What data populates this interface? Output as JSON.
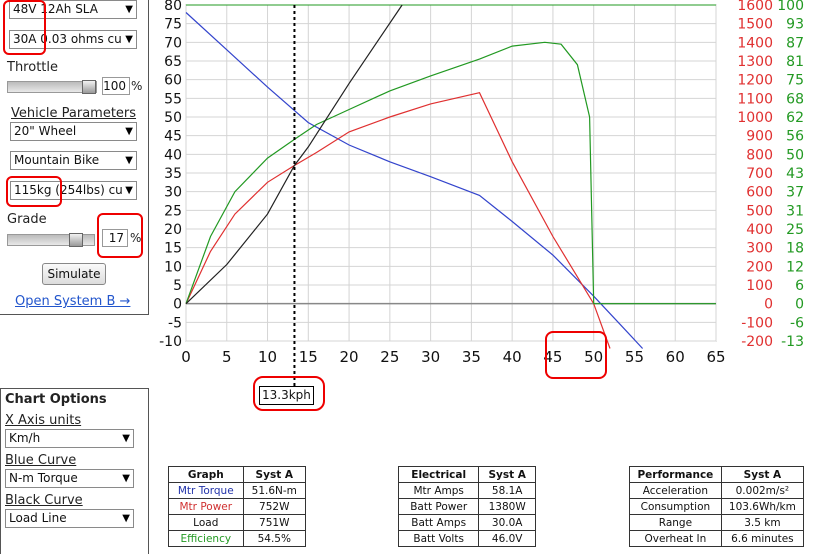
{
  "battery_select": "48V 12Ah SLA",
  "controller_select": "30A 0.03 ohms cu",
  "throttle": {
    "label": "Throttle",
    "value": "100",
    "unit": "%",
    "level": 1.0
  },
  "vehicle": {
    "heading": "Vehicle Parameters",
    "wheel": "20\"  Wheel",
    "bike": "Mountain Bike",
    "weight": "115kg (254lbs) cu"
  },
  "grade": {
    "label": "Grade",
    "value": "17",
    "unit": "%",
    "level": 0.85
  },
  "simulate_label": "Simulate",
  "open_system_b": "Open System B →",
  "chart_options": {
    "heading": "Chart Options",
    "x_axis_label": "X Axis units",
    "x_axis_value": "Km/h",
    "blue_label": "Blue Curve",
    "blue_value": "N-m Torque",
    "black_label": "Black Curve",
    "black_value": "Load Line"
  },
  "cursor_readout": "13.3kph",
  "colors": {
    "blue": "#3344cc",
    "red": "#e03030",
    "green": "#229922",
    "black": "#222222",
    "mark": "#ee0000"
  },
  "chart_data": {
    "type": "line",
    "xlim": [
      0,
      65
    ],
    "ylim": [
      -10,
      80
    ],
    "x_ticks": [
      "0",
      "5",
      "10",
      "15",
      "20",
      "25",
      "30",
      "35",
      "40",
      "45",
      "50",
      "55",
      "60",
      "65"
    ],
    "y_ticks_left": [
      "80",
      "75",
      "70",
      "65",
      "60",
      "55",
      "50",
      "45",
      "40",
      "35",
      "30",
      "25",
      "20",
      "15",
      "10",
      "5",
      "0",
      "-5",
      "-10"
    ],
    "y_ticks_right_red": [
      "1600",
      "1500",
      "1400",
      "1300",
      "1200",
      "1100",
      "1000",
      "900",
      "800",
      "700",
      "600",
      "500",
      "400",
      "300",
      "200",
      "100",
      "0",
      "-100",
      "-200"
    ],
    "y_ticks_right_green": [
      "100",
      "93",
      "87",
      "81",
      "75",
      "68",
      "62",
      "56",
      "50",
      "43",
      "37",
      "31",
      "25",
      "18",
      "12",
      "6",
      "0",
      "-6",
      "-13"
    ],
    "cursor_x": 13.3,
    "series": [
      {
        "color": "blue",
        "x": [
          0,
          5,
          10,
          15,
          20,
          25,
          30,
          36,
          40,
          45,
          50,
          53,
          56
        ],
        "y": [
          78,
          68,
          58,
          48.5,
          42.5,
          38,
          34,
          29,
          22,
          13,
          2,
          -5,
          -12
        ]
      },
      {
        "color": "red",
        "x": [
          0,
          3,
          6,
          10,
          13.3,
          16,
          20,
          25,
          30,
          36,
          40,
          45,
          50,
          52
        ],
        "y": [
          0,
          14,
          24,
          32.5,
          37,
          40.5,
          46,
          50,
          53.5,
          56.5,
          38,
          18,
          0,
          -12
        ]
      },
      {
        "color": "green",
        "x": [
          0,
          3,
          6,
          10,
          13.3,
          16,
          20,
          25,
          30,
          36,
          40,
          44,
          46,
          48,
          49.5,
          50,
          50.5,
          65
        ],
        "y": [
          0,
          18,
          30,
          39,
          44,
          48,
          52,
          57,
          61,
          65.5,
          69,
          70,
          69.5,
          64,
          50,
          0,
          0,
          0
        ]
      },
      {
        "color": "black",
        "x": [
          0,
          5,
          10,
          13.3,
          15,
          20,
          26.5
        ],
        "y": [
          0,
          10.5,
          24,
          37,
          42,
          59,
          80
        ]
      }
    ]
  },
  "table_graph": {
    "header": [
      "Graph",
      "Syst A"
    ],
    "rows": [
      [
        "Mtr Torque",
        "51.6N-m"
      ],
      [
        "Mtr Power",
        "752W"
      ],
      [
        "Load",
        "751W"
      ],
      [
        "Efficiency",
        "54.5%"
      ]
    ]
  },
  "table_electrical": {
    "header": [
      "Electrical",
      "Syst A"
    ],
    "rows": [
      [
        "Mtr Amps",
        "58.1A"
      ],
      [
        "Batt Power",
        "1380W"
      ],
      [
        "Batt Amps",
        "30.0A"
      ],
      [
        "Batt Volts",
        "46.0V"
      ]
    ]
  },
  "table_performance": {
    "header": [
      "Performance",
      "Syst A"
    ],
    "rows": [
      [
        "Acceleration",
        "0.002m/s²"
      ],
      [
        "Consumption",
        "103.6Wh/km"
      ],
      [
        "Range",
        "3.5 km"
      ],
      [
        "Overheat In",
        "6.6 minutes"
      ]
    ]
  }
}
